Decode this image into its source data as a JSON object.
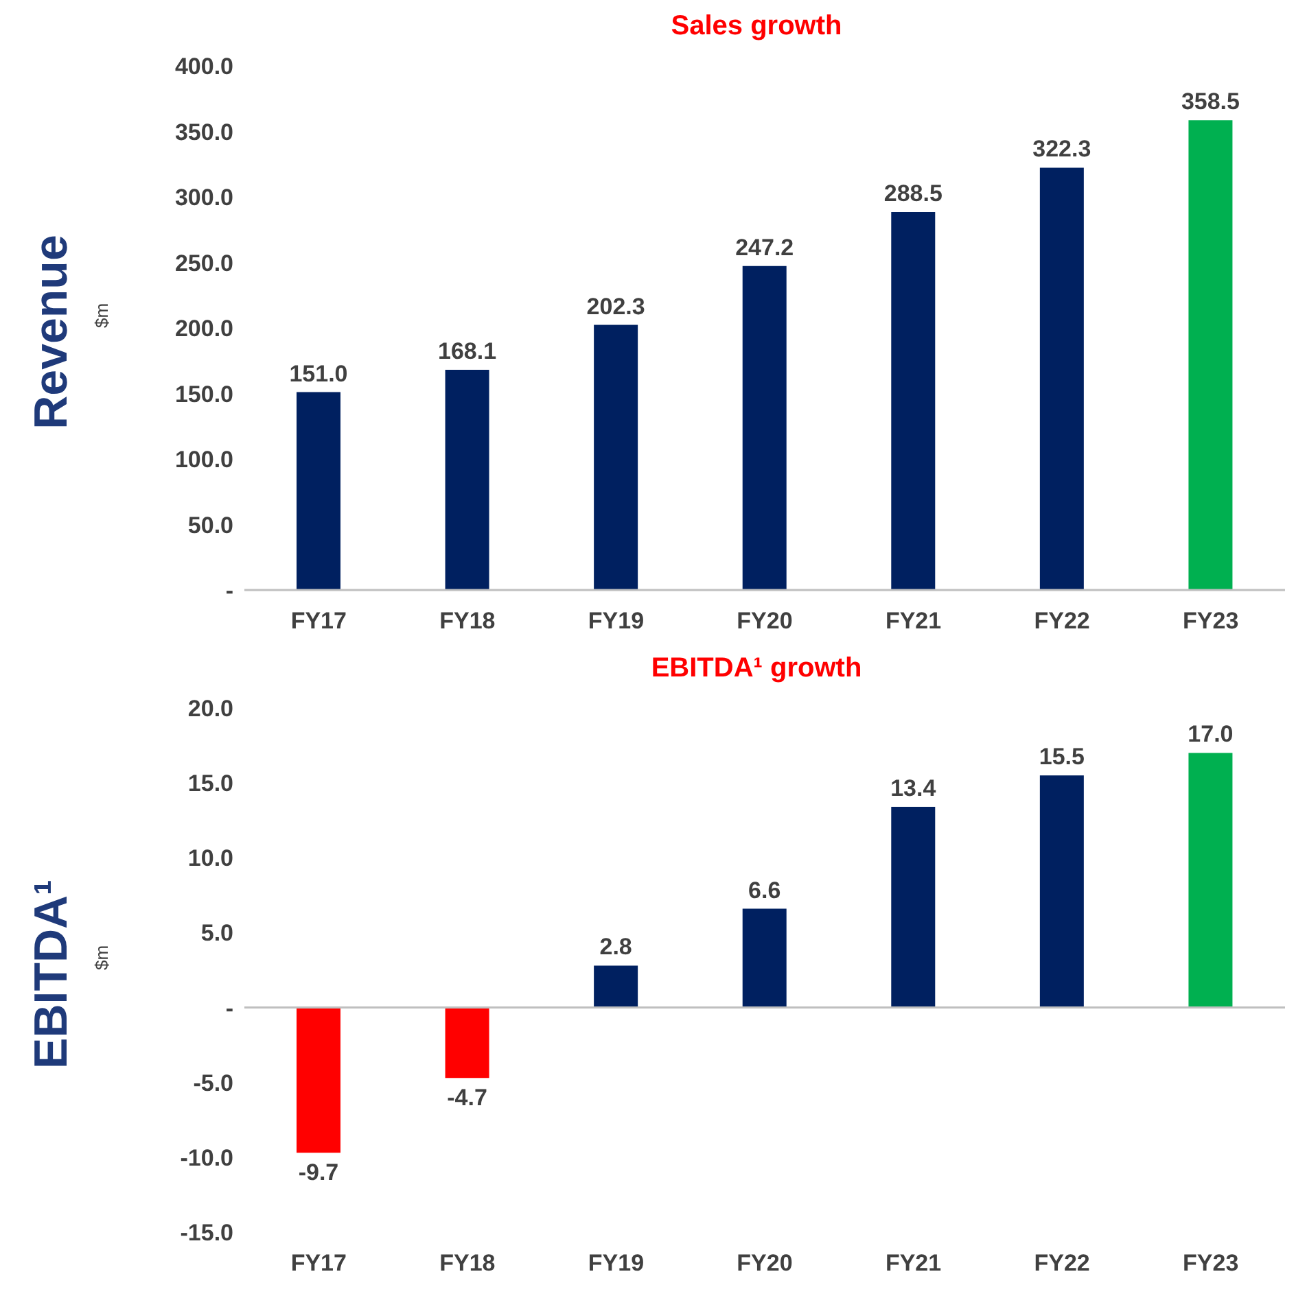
{
  "chart_data": [
    {
      "type": "bar",
      "title": "Sales growth",
      "ylabel": "$m",
      "annotations": [
        "Revenue"
      ],
      "categories": [
        "FY17",
        "FY18",
        "FY19",
        "FY20",
        "FY21",
        "FY22",
        "FY23"
      ],
      "values": [
        151.0,
        168.1,
        202.3,
        247.2,
        288.5,
        322.3,
        358.5
      ],
      "colors": [
        "#002060",
        "#002060",
        "#002060",
        "#002060",
        "#002060",
        "#002060",
        "#00b050"
      ],
      "value_labels": [
        "151.0",
        "168.1",
        "202.3",
        "247.2",
        "288.5",
        "322.3",
        "358.5"
      ],
      "ylim": [
        0,
        400
      ],
      "yticks": [
        {
          "value": 0,
          "label": "-"
        },
        {
          "value": 50,
          "label": "50.0"
        },
        {
          "value": 100,
          "label": "100.0"
        },
        {
          "value": 150,
          "label": "150.0"
        },
        {
          "value": 200,
          "label": "200.0"
        },
        {
          "value": 250,
          "label": "250.0"
        },
        {
          "value": 300,
          "label": "300.0"
        },
        {
          "value": 350,
          "label": "350.0"
        },
        {
          "value": 400,
          "label": "400.0"
        }
      ],
      "grid": false,
      "legend": false
    },
    {
      "type": "bar",
      "title": "EBITDA¹ growth",
      "ylabel": "$m",
      "annotations": [
        "EBITDA¹"
      ],
      "categories": [
        "FY17",
        "FY18",
        "FY19",
        "FY20",
        "FY21",
        "FY22",
        "FY23"
      ],
      "values": [
        -9.7,
        -4.7,
        2.8,
        6.6,
        13.4,
        15.5,
        17.0
      ],
      "colors": [
        "#ff0000",
        "#ff0000",
        "#002060",
        "#002060",
        "#002060",
        "#002060",
        "#00b050"
      ],
      "value_labels": [
        "-9.7",
        "-4.7",
        "2.8",
        "6.6",
        "13.4",
        "15.5",
        "17.0"
      ],
      "ylim": [
        -15,
        20
      ],
      "yticks": [
        {
          "value": -15,
          "label": "-15.0"
        },
        {
          "value": -10,
          "label": "-10.0"
        },
        {
          "value": -5,
          "label": "-5.0"
        },
        {
          "value": 0,
          "label": "-"
        },
        {
          "value": 5,
          "label": "5.0"
        },
        {
          "value": 10,
          "label": "10.0"
        },
        {
          "value": 15,
          "label": "15.0"
        },
        {
          "value": 20,
          "label": "20.0"
        }
      ],
      "ref_lines": [
        {
          "axis": "y",
          "value": 0,
          "color": "#bfbfbf"
        }
      ],
      "grid": false,
      "legend": false
    }
  ]
}
